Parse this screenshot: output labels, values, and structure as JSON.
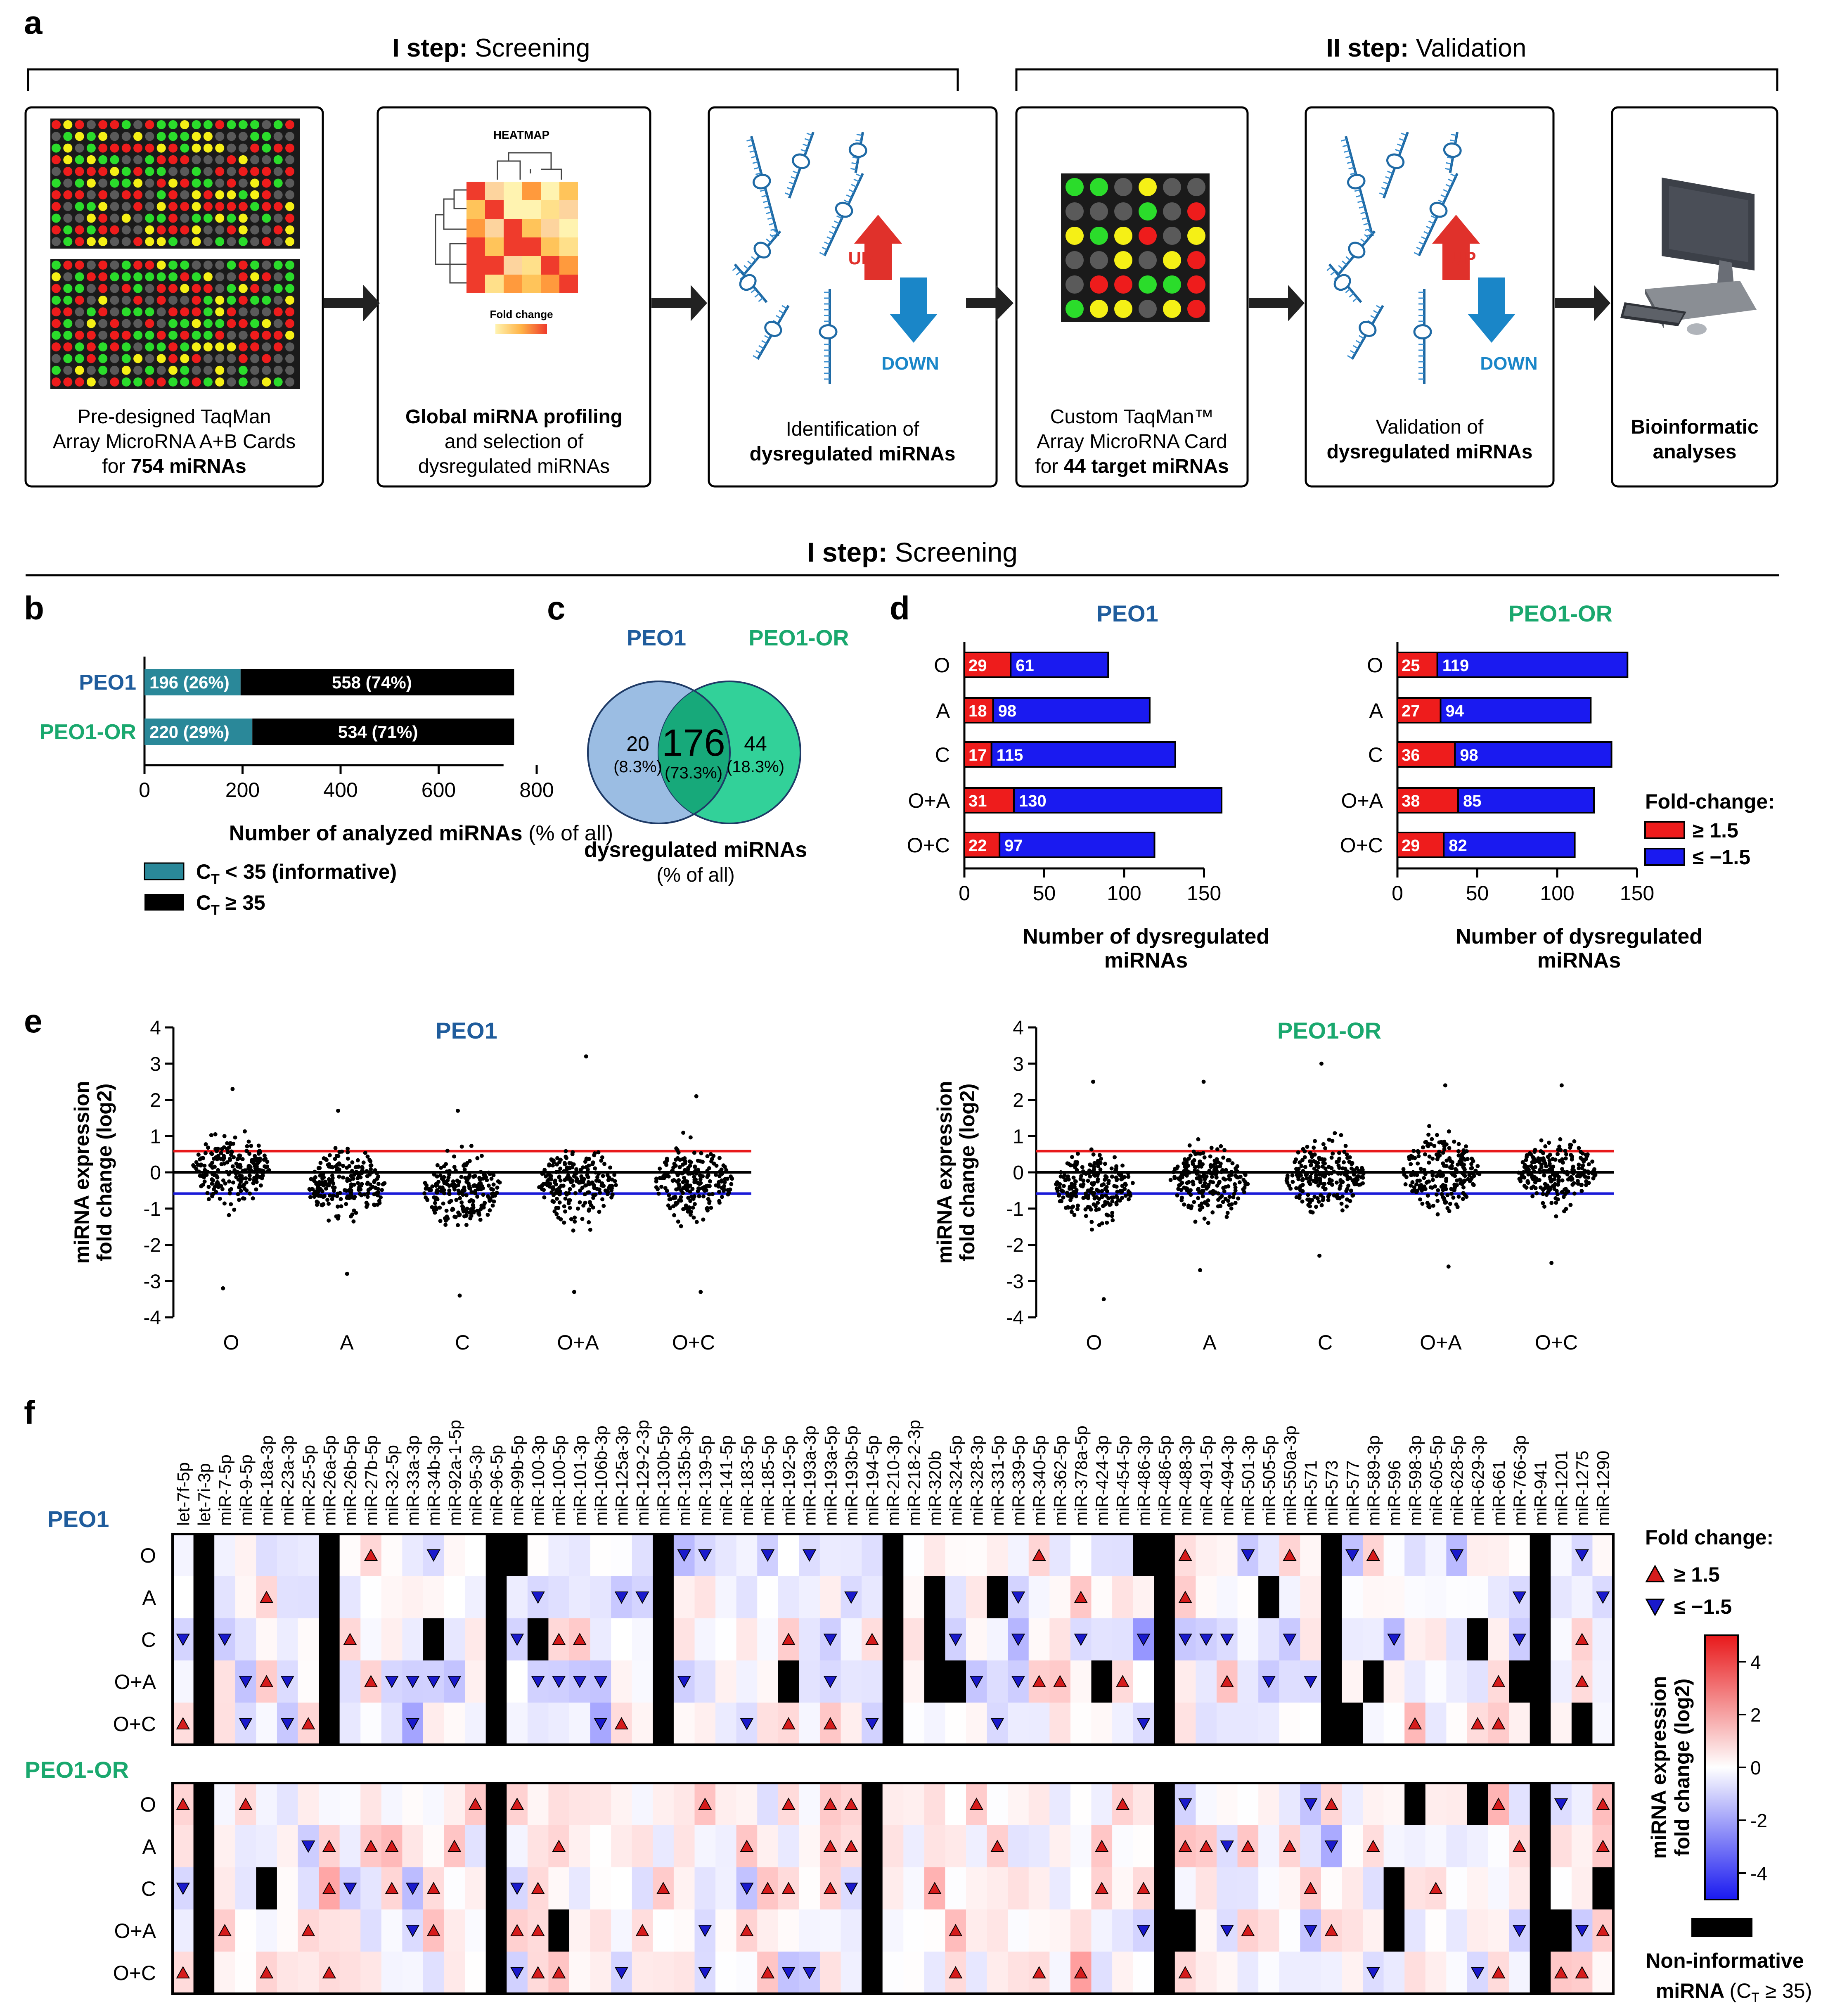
{
  "panel_letters": {
    "a": "a",
    "b": "b",
    "c": "c",
    "d": "d",
    "e": "e",
    "f": "f"
  },
  "panel_a": {
    "step1": {
      "bold": "I step:",
      "rest": " Screening"
    },
    "step2": {
      "bold": "II step:",
      "rest": " Validation"
    },
    "boxes": [
      {
        "lines": [
          "Pre-designed TaqMan",
          "Array MicroRNA A+B Cards"
        ],
        "prefix": "for ",
        "bold": "754 miRNAs"
      },
      {
        "bold": "Global miRNA profiling",
        "lines": [
          "and selection of",
          "dysregulated miRNAs"
        ]
      },
      {
        "lines": [
          "Identification of"
        ],
        "bold": "dysregulated miRNAs"
      },
      {
        "lines": [
          "Custom TaqMan™",
          "Array MicroRNA Card"
        ],
        "prefix": "for ",
        "bold": "44 target miRNAs"
      },
      {
        "lines": [
          "Validation of"
        ],
        "bold": "dysregulated miRNAs"
      },
      {
        "bold_lines": [
          "Bioinformatic",
          "analyses"
        ]
      }
    ],
    "heatmap_title": "HEATMAP",
    "heatmap_legend": "Fold change",
    "up": "UP",
    "down": "DOWN",
    "colors": {
      "up": "#e0312b",
      "down": "#1a86c8",
      "green": "#2bdc2b",
      "red": "#ee1c1c",
      "yellow": "#f5f016",
      "grey": "#5a5a5a"
    }
  },
  "mid_header": {
    "bold": "I step:",
    "rest": " Screening"
  },
  "chart_data": [
    {
      "id": "b",
      "type": "bar",
      "stacked": true,
      "orientation": "horizontal",
      "categories": [
        "PEO1",
        "PEO1-OR"
      ],
      "series": [
        {
          "name": "CT < 35 (informative)",
          "values": [
            196,
            220
          ],
          "labels": [
            "196 (26%)",
            "220 (29%)"
          ],
          "color": "#2a8899"
        },
        {
          "name": "CT ≥ 35",
          "values": [
            558,
            534
          ],
          "labels": [
            "558 (74%)",
            "534 (71%)"
          ],
          "color": "#000000"
        }
      ],
      "xlabel": "Number of analyzed miRNAs (% of all)",
      "xticks": [
        0,
        200,
        400,
        600,
        800
      ],
      "xlim": [
        0,
        800
      ],
      "legend_labels": [
        "C",
        "T",
        " < 35 (informative)",
        " ≥ 35"
      ],
      "category_colors": [
        "#1f5c9c",
        "#1aa86e"
      ]
    },
    {
      "id": "c",
      "type": "venn",
      "sets": [
        "PEO1",
        "PEO1-OR"
      ],
      "only_a": {
        "value": 20,
        "pct": "(8.3%)"
      },
      "both": {
        "value": 176,
        "pct": "(73.3%)"
      },
      "only_b": {
        "value": 44,
        "pct": "(18.3%)"
      },
      "caption": [
        "dysregulated miRNAs",
        "(% of all)"
      ],
      "colors": [
        "#9bbde3",
        "#27cf93",
        "#1aa86e"
      ]
    },
    {
      "id": "d1",
      "type": "bar",
      "stacked": true,
      "orientation": "horizontal",
      "title": "PEO1",
      "categories": [
        "O",
        "A",
        "C",
        "O+A",
        "O+C"
      ],
      "series": [
        {
          "name": "≥ 1.5",
          "values": [
            29,
            18,
            17,
            31,
            22
          ],
          "color": "#ee1c1c"
        },
        {
          "name": "≤ −1.5",
          "values": [
            61,
            98,
            115,
            130,
            97
          ],
          "color": "#1a1af0"
        }
      ],
      "xlabel": "Number of dysregulated miRNAs",
      "xticks": [
        0,
        50,
        100,
        150
      ],
      "xlim": [
        0,
        150
      ]
    },
    {
      "id": "d2",
      "type": "bar",
      "stacked": true,
      "orientation": "horizontal",
      "title": "PEO1-OR",
      "categories": [
        "O",
        "A",
        "C",
        "O+A",
        "O+C"
      ],
      "series": [
        {
          "name": "≥ 1.5",
          "values": [
            25,
            27,
            36,
            38,
            29
          ],
          "color": "#ee1c1c"
        },
        {
          "name": "≤ −1.5",
          "values": [
            119,
            94,
            98,
            85,
            82
          ],
          "color": "#1a1af0"
        }
      ],
      "xlabel": "Number of dysregulated miRNAs",
      "xticks": [
        0,
        50,
        100,
        150
      ],
      "xlim": [
        0,
        150
      ],
      "legend_title": "Fold-change:"
    },
    {
      "id": "e1",
      "type": "scatter",
      "title": "PEO1",
      "categories": [
        "O",
        "A",
        "C",
        "O+A",
        "O+C"
      ],
      "ylabel": [
        "miRNA expression",
        "fold change (log2)"
      ],
      "ylim": [
        -4,
        4
      ],
      "yticks": [
        4,
        3,
        2,
        1,
        0,
        -1,
        -2,
        -3,
        -4
      ],
      "reference_lines": [
        {
          "y": 0.585,
          "color": "#e8191b"
        },
        {
          "y": 0,
          "color": "#000000"
        },
        {
          "y": -0.585,
          "color": "#1a1ad8"
        }
      ],
      "group_ranges": [
        [
          -3.2,
          2.3
        ],
        [
          -2.8,
          1.7
        ],
        [
          -3.4,
          1.7
        ],
        [
          -3.3,
          3.2
        ],
        [
          -3.3,
          2.1
        ]
      ],
      "group_centers": [
        0.1,
        -0.4,
        -0.5,
        -0.3,
        -0.3
      ]
    },
    {
      "id": "e2",
      "type": "scatter",
      "title": "PEO1-OR",
      "categories": [
        "O",
        "A",
        "C",
        "O+A",
        "O+C"
      ],
      "ylabel": [
        "miRNA expression",
        "fold change (log2)"
      ],
      "ylim": [
        -4,
        4
      ],
      "yticks": [
        4,
        3,
        2,
        1,
        0,
        -1,
        -2,
        -3,
        -4
      ],
      "reference_lines": [
        {
          "y": 0.585,
          "color": "#e8191b"
        },
        {
          "y": 0,
          "color": "#000000"
        },
        {
          "y": -0.585,
          "color": "#1a1ad8"
        }
      ],
      "group_ranges": [
        [
          -3.5,
          2.5
        ],
        [
          -2.7,
          2.5
        ],
        [
          -2.3,
          3.0
        ],
        [
          -2.6,
          2.4
        ],
        [
          -2.5,
          2.4
        ]
      ],
      "group_centers": [
        -0.4,
        -0.2,
        -0.1,
        0.0,
        0.0
      ]
    },
    {
      "id": "f",
      "type": "heatmap",
      "columns": [
        "let-7f-5p",
        "let-7i-3p",
        "miR-7-5p",
        "miR-9-5p",
        "miR-18a-3p",
        "miR-23a-3p",
        "miR-25-5p",
        "miR-26a-5p",
        "miR-26b-5p",
        "miR-27b-5p",
        "miR-32-5p",
        "miR-33a-3p",
        "miR-34b-3p",
        "miR-92a-1-5p",
        "miR-95-3p",
        "miR-96-5p",
        "miR-99b-5p",
        "miR-100-3p",
        "miR-100-5p",
        "miR-101-3p",
        "miR-106b-3p",
        "miR-125a-3p",
        "miR-129-2-3p",
        "miR-130b-5p",
        "miR-135b-3p",
        "miR-139-5p",
        "miR-141-5p",
        "miR-183-5p",
        "miR-185-5p",
        "miR-192-5p",
        "miR-193a-3p",
        "miR-193a-5p",
        "miR-193b-5p",
        "miR-194-5p",
        "miR-210-3p",
        "miR-218-2-3p",
        "miR-320b",
        "miR-324-5p",
        "miR-328-3p",
        "miR-331-5p",
        "miR-339-5p",
        "miR-340-5p",
        "miR-362-5p",
        "miR-378a-5p",
        "miR-424-3p",
        "miR-454-5p",
        "miR-486-3p",
        "miR-486-5p",
        "miR-488-3p",
        "miR-491-5p",
        "miR-494-3p",
        "miR-501-3p",
        "miR-505-5p",
        "miR-550a-3p",
        "miR-571",
        "miR-573",
        "miR-577",
        "miR-589-3p",
        "miR-596",
        "miR-598-3p",
        "miR-605-5p",
        "miR-628-5p",
        "miR-629-3p",
        "miR-661",
        "miR-766-3p",
        "miR-941",
        "miR-1201",
        "miR-1275",
        "miR-1290"
      ],
      "blocks": [
        {
          "name": "PEO1",
          "rows": [
            "O",
            "A",
            "C",
            "O+A",
            "O+C"
          ]
        },
        {
          "name": "PEO1-OR",
          "rows": [
            "O",
            "A",
            "C",
            "O+A",
            "O+C"
          ]
        }
      ],
      "black_columns": [
        [
          "let-7i-3p",
          "miR-26a-5p",
          "miR-96-5p",
          "miR-130b-5p",
          "miR-210-3p",
          "miR-486-5p",
          "miR-573",
          "miR-941"
        ],
        [
          "let-7i-3p",
          "miR-96-5p",
          "miR-194-5p",
          "miR-486-5p",
          "miR-941"
        ]
      ],
      "legend_title": "Fold change:",
      "legend_up": "≥ 1.5",
      "legend_down": "≤ −1.5",
      "colorbar_label": [
        "miRNA expression",
        "fold change (log2)"
      ],
      "colorbar_ticks": [
        4,
        2,
        0,
        -2,
        -4
      ],
      "colorbar_range": [
        -5,
        5
      ],
      "noninf_label": [
        "Non-informative",
        "miRNA",
        "(C",
        "T",
        " ≥ 35)"
      ],
      "colors": {
        "high": "#e8191b",
        "low": "#1a1af0",
        "mid": "#ffffff",
        "up_marker": "#d61c1c",
        "down_marker": "#1a1acc"
      }
    }
  ]
}
